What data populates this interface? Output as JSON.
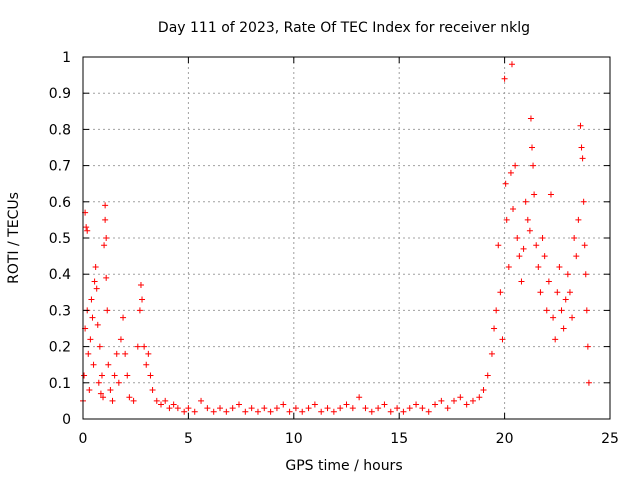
{
  "chart_data": {
    "type": "scatter",
    "title": "Day 111 of 2023, Rate Of TEC Index for receiver nklg",
    "xlabel": "GPS time / hours",
    "ylabel": "ROTI / TECUs",
    "xlim": [
      0,
      25
    ],
    "ylim": [
      0,
      1
    ],
    "xticks": [
      "0",
      "5",
      "10",
      "15",
      "20",
      "25"
    ],
    "yticks": [
      "0",
      "0.1",
      "0.2",
      "0.3",
      "0.4",
      "0.5",
      "0.6",
      "0.7",
      "0.8",
      "0.9",
      "1"
    ],
    "grid": true,
    "marker": "+",
    "color": "#ff0000",
    "series": [
      {
        "name": "ROTI",
        "points": [
          [
            0.0,
            0.05
          ],
          [
            0.05,
            0.12
          ],
          [
            0.1,
            0.25
          ],
          [
            0.1,
            0.57
          ],
          [
            0.15,
            0.53
          ],
          [
            0.2,
            0.52
          ],
          [
            0.2,
            0.3
          ],
          [
            0.25,
            0.18
          ],
          [
            0.3,
            0.08
          ],
          [
            0.35,
            0.22
          ],
          [
            0.4,
            0.33
          ],
          [
            0.45,
            0.28
          ],
          [
            0.5,
            0.15
          ],
          [
            0.55,
            0.38
          ],
          [
            0.6,
            0.42
          ],
          [
            0.65,
            0.36
          ],
          [
            0.7,
            0.26
          ],
          [
            0.75,
            0.1
          ],
          [
            0.8,
            0.2
          ],
          [
            0.85,
            0.07
          ],
          [
            0.9,
            0.12
          ],
          [
            0.95,
            0.06
          ],
          [
            1.0,
            0.48
          ],
          [
            1.05,
            0.59
          ],
          [
            1.05,
            0.55
          ],
          [
            1.1,
            0.5
          ],
          [
            1.1,
            0.39
          ],
          [
            1.15,
            0.3
          ],
          [
            1.2,
            0.15
          ],
          [
            1.3,
            0.08
          ],
          [
            1.4,
            0.05
          ],
          [
            1.5,
            0.12
          ],
          [
            1.6,
            0.18
          ],
          [
            1.7,
            0.1
          ],
          [
            1.8,
            0.22
          ],
          [
            1.9,
            0.28
          ],
          [
            2.0,
            0.18
          ],
          [
            2.1,
            0.12
          ],
          [
            2.2,
            0.06
          ],
          [
            2.4,
            0.05
          ],
          [
            2.6,
            0.2
          ],
          [
            2.7,
            0.3
          ],
          [
            2.75,
            0.37
          ],
          [
            2.8,
            0.33
          ],
          [
            2.9,
            0.2
          ],
          [
            3.0,
            0.15
          ],
          [
            3.1,
            0.18
          ],
          [
            3.2,
            0.12
          ],
          [
            3.3,
            0.08
          ],
          [
            3.5,
            0.05
          ],
          [
            3.7,
            0.04
          ],
          [
            3.9,
            0.05
          ],
          [
            4.1,
            0.03
          ],
          [
            4.3,
            0.04
          ],
          [
            4.5,
            0.03
          ],
          [
            4.8,
            0.02
          ],
          [
            5.0,
            0.03
          ],
          [
            5.3,
            0.02
          ],
          [
            5.6,
            0.05
          ],
          [
            5.9,
            0.03
          ],
          [
            6.2,
            0.02
          ],
          [
            6.5,
            0.03
          ],
          [
            6.8,
            0.02
          ],
          [
            7.1,
            0.03
          ],
          [
            7.4,
            0.04
          ],
          [
            7.7,
            0.02
          ],
          [
            8.0,
            0.03
          ],
          [
            8.3,
            0.02
          ],
          [
            8.6,
            0.03
          ],
          [
            8.9,
            0.02
          ],
          [
            9.2,
            0.03
          ],
          [
            9.5,
            0.04
          ],
          [
            9.8,
            0.02
          ],
          [
            10.1,
            0.03
          ],
          [
            10.4,
            0.02
          ],
          [
            10.7,
            0.03
          ],
          [
            11.0,
            0.04
          ],
          [
            11.3,
            0.02
          ],
          [
            11.6,
            0.03
          ],
          [
            11.9,
            0.02
          ],
          [
            12.2,
            0.03
          ],
          [
            12.5,
            0.04
          ],
          [
            12.8,
            0.03
          ],
          [
            13.1,
            0.06
          ],
          [
            13.4,
            0.03
          ],
          [
            13.7,
            0.02
          ],
          [
            14.0,
            0.03
          ],
          [
            14.3,
            0.04
          ],
          [
            14.6,
            0.02
          ],
          [
            14.9,
            0.03
          ],
          [
            15.2,
            0.02
          ],
          [
            15.5,
            0.03
          ],
          [
            15.8,
            0.04
          ],
          [
            16.1,
            0.03
          ],
          [
            16.4,
            0.02
          ],
          [
            16.7,
            0.04
          ],
          [
            17.0,
            0.05
          ],
          [
            17.3,
            0.03
          ],
          [
            17.6,
            0.05
          ],
          [
            17.9,
            0.06
          ],
          [
            18.2,
            0.04
          ],
          [
            18.5,
            0.05
          ],
          [
            18.8,
            0.06
          ],
          [
            19.0,
            0.08
          ],
          [
            19.2,
            0.12
          ],
          [
            19.4,
            0.18
          ],
          [
            19.5,
            0.25
          ],
          [
            19.6,
            0.3
          ],
          [
            19.7,
            0.48
          ],
          [
            19.8,
            0.35
          ],
          [
            19.9,
            0.22
          ],
          [
            20.0,
            0.94
          ],
          [
            20.05,
            0.65
          ],
          [
            20.1,
            0.55
          ],
          [
            20.2,
            0.42
          ],
          [
            20.3,
            0.68
          ],
          [
            20.35,
            0.98
          ],
          [
            20.4,
            0.58
          ],
          [
            20.5,
            0.7
          ],
          [
            20.6,
            0.5
          ],
          [
            20.7,
            0.45
          ],
          [
            20.8,
            0.38
          ],
          [
            20.9,
            0.47
          ],
          [
            21.0,
            0.6
          ],
          [
            21.1,
            0.55
          ],
          [
            21.2,
            0.52
          ],
          [
            21.25,
            0.83
          ],
          [
            21.3,
            0.75
          ],
          [
            21.35,
            0.7
          ],
          [
            21.4,
            0.62
          ],
          [
            21.5,
            0.48
          ],
          [
            21.6,
            0.42
          ],
          [
            21.7,
            0.35
          ],
          [
            21.8,
            0.5
          ],
          [
            21.9,
            0.45
          ],
          [
            22.0,
            0.3
          ],
          [
            22.1,
            0.38
          ],
          [
            22.2,
            0.62
          ],
          [
            22.3,
            0.28
          ],
          [
            22.4,
            0.22
          ],
          [
            22.5,
            0.35
          ],
          [
            22.6,
            0.42
          ],
          [
            22.7,
            0.3
          ],
          [
            22.8,
            0.25
          ],
          [
            22.9,
            0.33
          ],
          [
            23.0,
            0.4
          ],
          [
            23.1,
            0.35
          ],
          [
            23.2,
            0.28
          ],
          [
            23.3,
            0.5
          ],
          [
            23.4,
            0.45
          ],
          [
            23.5,
            0.55
          ],
          [
            23.6,
            0.81
          ],
          [
            23.65,
            0.75
          ],
          [
            23.7,
            0.72
          ],
          [
            23.75,
            0.6
          ],
          [
            23.8,
            0.48
          ],
          [
            23.85,
            0.4
          ],
          [
            23.9,
            0.3
          ],
          [
            23.95,
            0.2
          ],
          [
            24.0,
            0.1
          ]
        ]
      }
    ]
  }
}
